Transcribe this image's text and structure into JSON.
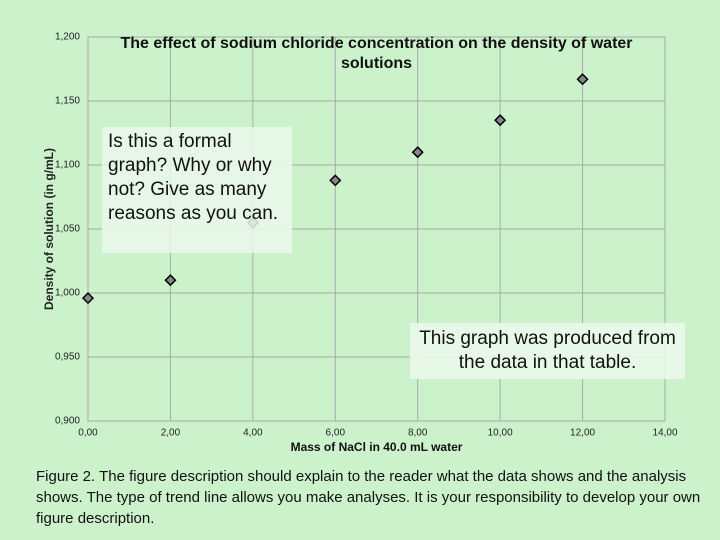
{
  "chart_data": {
    "type": "scatter",
    "title": "The effect of sodium chloride concentration on the density of water solutions",
    "x_label": "Mass of NaCl in 40.0 mL water",
    "y_label": "Density of solution (in g/mL)",
    "x": [
      0,
      2,
      4,
      6,
      8,
      10,
      12
    ],
    "series": [
      {
        "name": "Density",
        "color": "#888888",
        "values": [
          0.996,
          1.01,
          1.055,
          1.088,
          1.11,
          1.135,
          1.167
        ]
      }
    ],
    "xlim": [
      0,
      14
    ],
    "ylim": [
      0.9,
      1.2
    ],
    "xticks": [
      {
        "value": 0,
        "label": "0,00"
      },
      {
        "value": 2,
        "label": "2,00"
      },
      {
        "value": 4,
        "label": "4,00"
      },
      {
        "value": 6,
        "label": "6,00"
      },
      {
        "value": 8,
        "label": "8,00"
      },
      {
        "value": 10,
        "label": "10,00"
      },
      {
        "value": 12,
        "label": "12,00"
      },
      {
        "value": 14,
        "label": "14,00"
      }
    ],
    "yticks": [
      {
        "value": 0.9,
        "label": "0,900"
      },
      {
        "value": 0.95,
        "label": "0,950"
      },
      {
        "value": 1.0,
        "label": "1,000"
      },
      {
        "value": 1.05,
        "label": "1,050"
      },
      {
        "value": 1.1,
        "label": "1,100"
      },
      {
        "value": 1.15,
        "label": "1,150"
      },
      {
        "value": 1.2,
        "label": "1,200"
      }
    ],
    "grid": true,
    "annotations": [
      "Is this a formal graph? Why or why not? Give as many reasons as you can.",
      "This graph was produced from the data in that table."
    ],
    "caption": "Figure 2. The figure description should explain to the reader what the data shows and the analysis shows.  The type of trend line allows you make analyses.  It is your responsibility to develop your own figure description."
  }
}
